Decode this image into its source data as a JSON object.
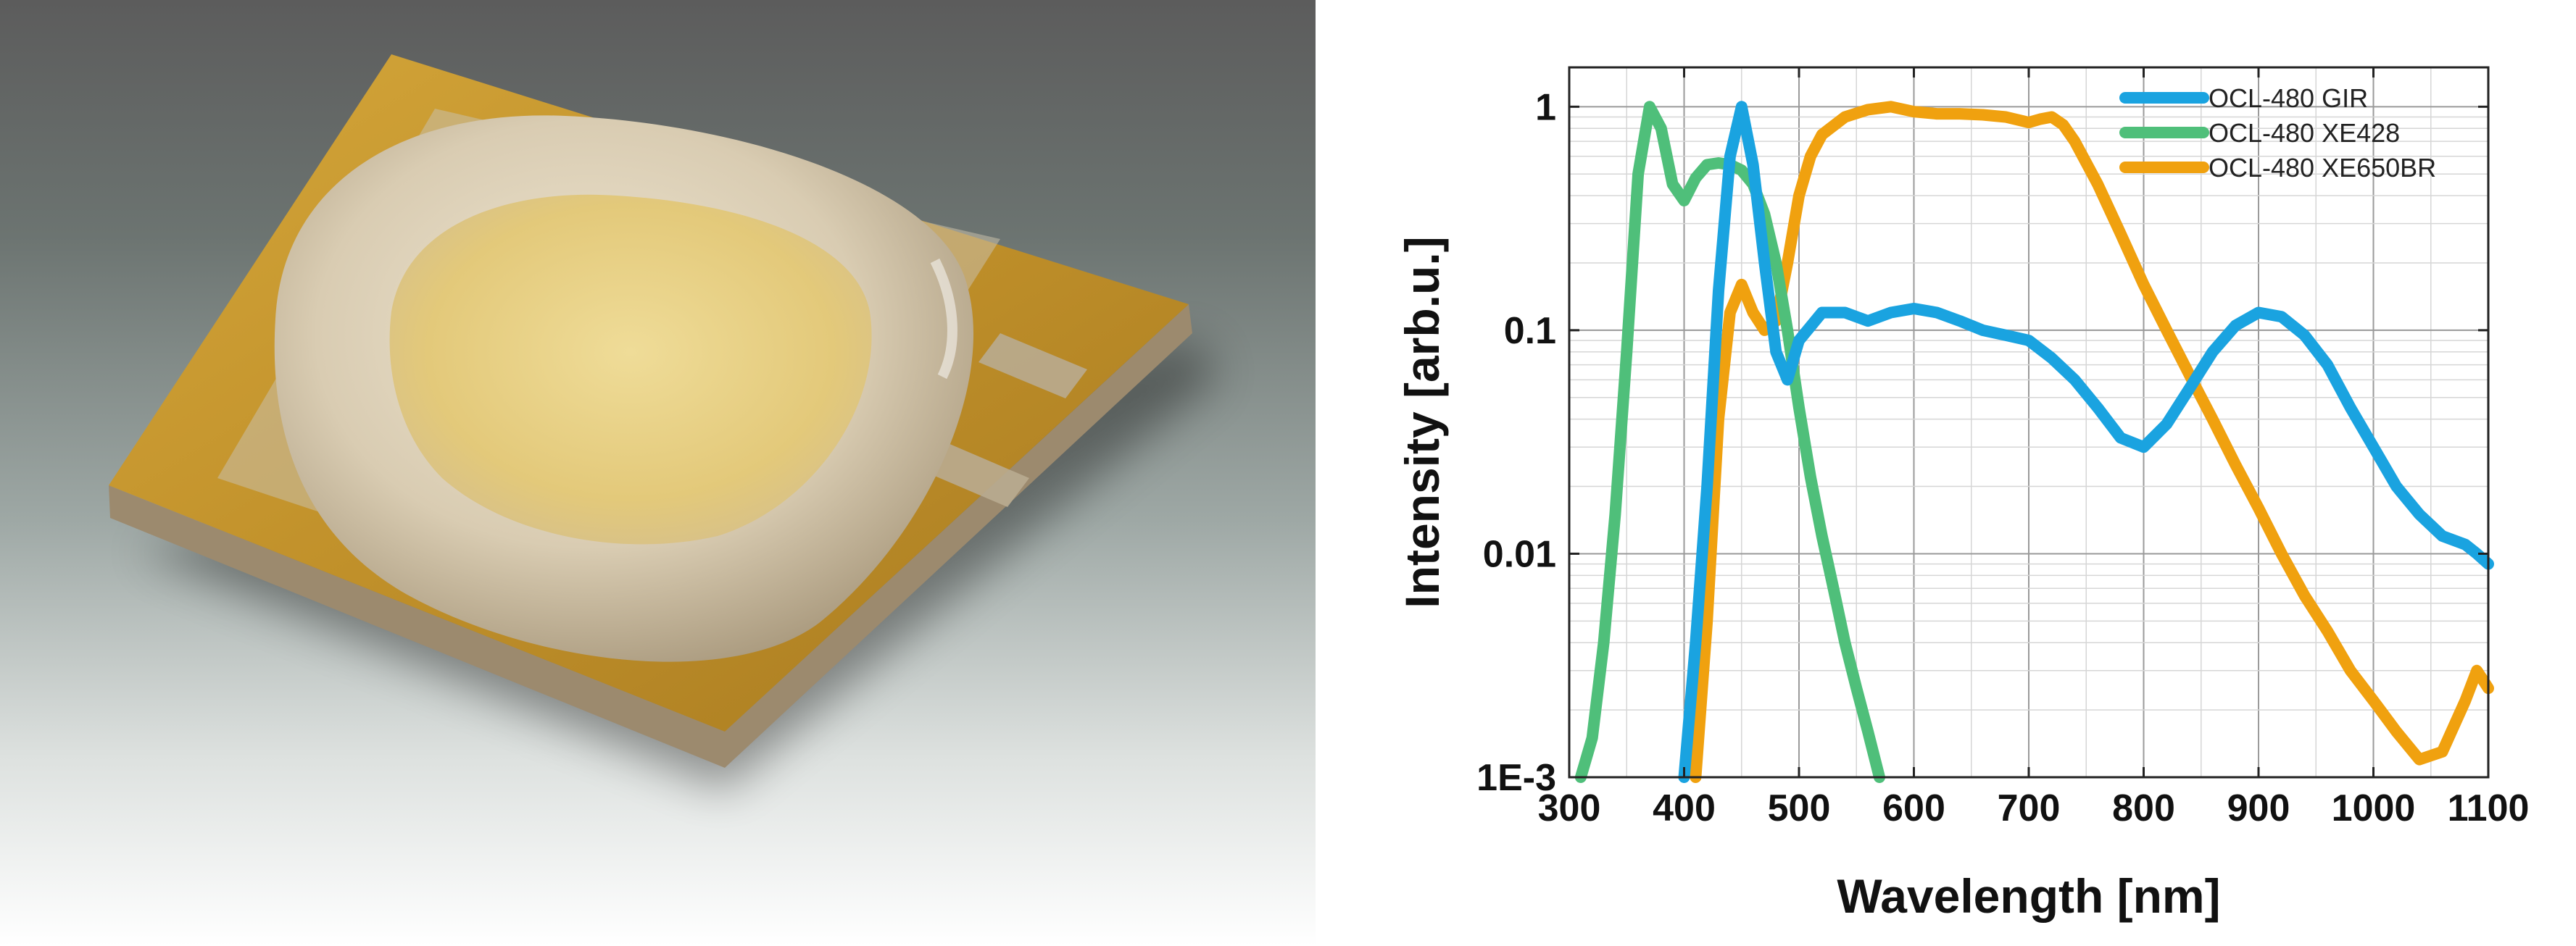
{
  "photo": {
    "subject": "led-package-photo"
  },
  "colors": {
    "gir": "#1aa3e0",
    "xe428": "#4fbf7a",
    "xe650br": "#f0a10f",
    "gold": "#c99a2e",
    "dome": "#d8ccb2",
    "phosphor": "#e6d08a"
  },
  "chart_data": {
    "type": "line",
    "title": "",
    "xlabel": "Wavelength [nm]",
    "ylabel": "Intensity [arb.u.]",
    "yscale": "log",
    "xlim": [
      300,
      1100
    ],
    "ylim": [
      0.001,
      1.5
    ],
    "grid": true,
    "legend_position": "top-right",
    "x_ticks": [
      300,
      400,
      500,
      600,
      700,
      800,
      900,
      1000,
      1100
    ],
    "x_tick_labels": [
      "300",
      "400",
      "500",
      "600",
      "700",
      "800",
      "900",
      "1000",
      "1100"
    ],
    "y_ticks": [
      0.001,
      0.01,
      0.1,
      1
    ],
    "y_tick_labels": [
      "1E-3",
      "0.01",
      "0.1",
      "1"
    ],
    "series": [
      {
        "name": "OCL-480 GIR",
        "color": "#1aa3e0",
        "x": [
          400,
          410,
          420,
          430,
          440,
          450,
          460,
          470,
          480,
          490,
          500,
          520,
          540,
          560,
          580,
          600,
          620,
          640,
          660,
          680,
          700,
          720,
          740,
          760,
          780,
          800,
          820,
          840,
          860,
          880,
          900,
          920,
          940,
          960,
          980,
          1000,
          1020,
          1040,
          1060,
          1080,
          1090,
          1100
        ],
        "y": [
          0.001,
          0.004,
          0.02,
          0.15,
          0.6,
          1.0,
          0.55,
          0.2,
          0.08,
          0.06,
          0.09,
          0.12,
          0.12,
          0.11,
          0.12,
          0.125,
          0.12,
          0.11,
          0.1,
          0.095,
          0.09,
          0.075,
          0.06,
          0.045,
          0.033,
          0.03,
          0.038,
          0.055,
          0.08,
          0.105,
          0.12,
          0.115,
          0.095,
          0.07,
          0.045,
          0.03,
          0.02,
          0.015,
          0.012,
          0.011,
          0.01,
          0.009
        ]
      },
      {
        "name": "OCL-480 XE428",
        "color": "#4fbf7a",
        "x": [
          310,
          320,
          330,
          340,
          350,
          360,
          370,
          380,
          390,
          400,
          410,
          420,
          430,
          440,
          450,
          460,
          470,
          480,
          490,
          500,
          510,
          520,
          530,
          540,
          550,
          560,
          570
        ],
        "y": [
          0.001,
          0.0015,
          0.004,
          0.015,
          0.08,
          0.5,
          1.0,
          0.8,
          0.45,
          0.38,
          0.48,
          0.55,
          0.56,
          0.55,
          0.52,
          0.45,
          0.33,
          0.2,
          0.1,
          0.045,
          0.022,
          0.012,
          0.007,
          0.004,
          0.0025,
          0.0016,
          0.001
        ]
      },
      {
        "name": "OCL-480 XE650BR",
        "color": "#f0a10f",
        "x": [
          410,
          420,
          430,
          440,
          450,
          460,
          470,
          480,
          490,
          500,
          510,
          520,
          540,
          560,
          580,
          600,
          620,
          640,
          660,
          680,
          700,
          710,
          720,
          730,
          740,
          760,
          780,
          800,
          820,
          840,
          860,
          880,
          900,
          920,
          940,
          960,
          980,
          1000,
          1020,
          1040,
          1060,
          1080,
          1090,
          1100
        ],
        "y": [
          0.001,
          0.005,
          0.04,
          0.12,
          0.16,
          0.12,
          0.1,
          0.11,
          0.2,
          0.4,
          0.6,
          0.75,
          0.9,
          0.97,
          1.0,
          0.95,
          0.93,
          0.93,
          0.92,
          0.9,
          0.85,
          0.88,
          0.9,
          0.83,
          0.7,
          0.45,
          0.27,
          0.16,
          0.1,
          0.063,
          0.04,
          0.025,
          0.016,
          0.01,
          0.0065,
          0.0045,
          0.003,
          0.0022,
          0.0016,
          0.0012,
          0.0013,
          0.0022,
          0.003,
          0.0025
        ]
      }
    ]
  }
}
